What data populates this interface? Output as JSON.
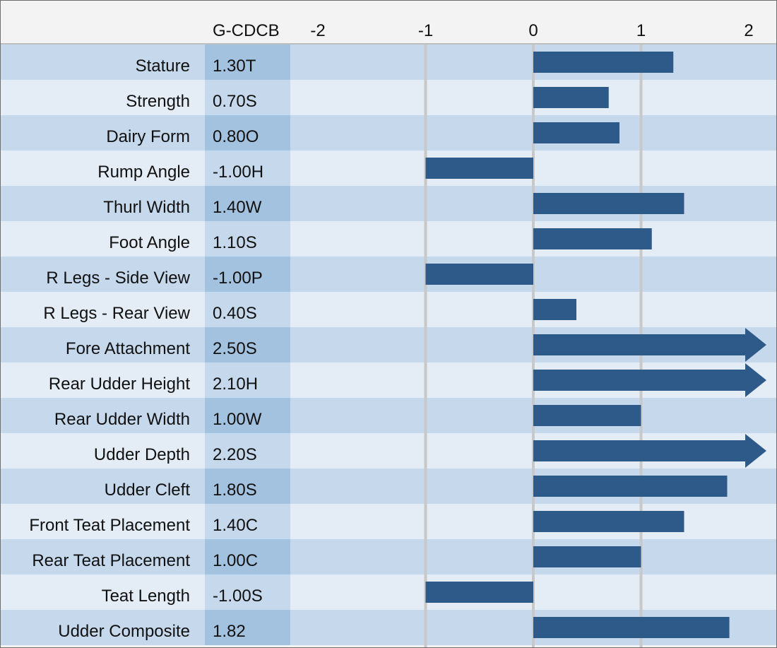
{
  "chart_data": {
    "type": "bar",
    "orientation": "horizontal",
    "column_header": "G-CDCB",
    "xlim": [
      -2,
      2
    ],
    "x_ticks": [
      "-2",
      "-1",
      "0",
      "1",
      "2"
    ],
    "categories": [
      "Stature",
      "Strength",
      "Dairy Form",
      "Rump Angle",
      "Thurl Width",
      "Foot Angle",
      "R Legs - Side View",
      "R Legs - Rear View",
      "Fore Attachment",
      "Rear Udder Height",
      "Rear Udder Width",
      "Udder Depth",
      "Udder Cleft",
      "Front Teat Placement",
      "Rear Teat Placement",
      "Teat Length",
      "Udder Composite"
    ],
    "value_labels": [
      "1.30T",
      "0.70S",
      "0.80O",
      "-1.00H",
      "1.40W",
      "1.10S",
      "-1.00P",
      "0.40S",
      "2.50S",
      "2.10H",
      "1.00W",
      "2.20S",
      "1.80S",
      "1.40C",
      "1.00C",
      "-1.00S",
      "1.82"
    ],
    "values": [
      1.3,
      0.7,
      0.8,
      -1.0,
      1.4,
      1.1,
      -1.0,
      0.4,
      2.5,
      2.1,
      1.0,
      2.2,
      1.8,
      1.4,
      1.0,
      -1.0,
      1.82
    ],
    "grid": true,
    "colors": {
      "bar": "#2e5a8a",
      "row_dark": "#c5d8ec",
      "row_light": "#e4ecf5",
      "value_col_dark": "#a3c2e0",
      "value_col_light": "#c5d8ec",
      "header_bg": "#f3f3f3",
      "gridline": "#c8c8c8"
    }
  }
}
